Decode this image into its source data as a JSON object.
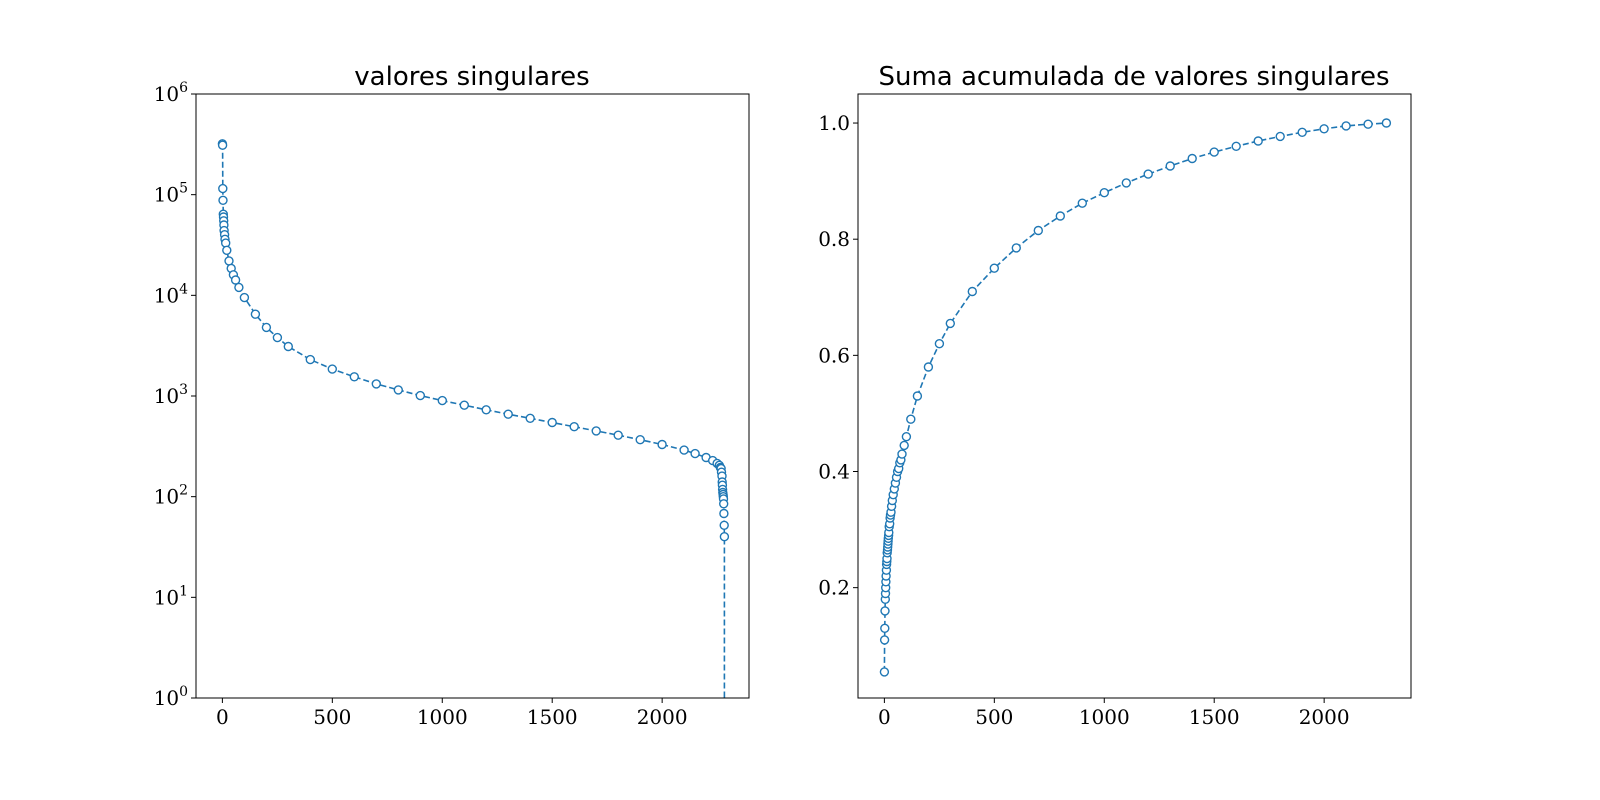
{
  "colors": {
    "series": "#1f77b4",
    "marker_face": "#ffffff",
    "axes": "#000000",
    "background": "#ffffff"
  },
  "chart_data": [
    {
      "type": "line",
      "title": "valores singulares",
      "xlabel": "",
      "ylabel": "",
      "yscale": "log",
      "xlim": [
        -120,
        2395
      ],
      "ylim": [
        1,
        1000000
      ],
      "xticks": [
        0,
        500,
        1000,
        1500,
        2000
      ],
      "xtick_labels": [
        "0",
        "500",
        "1000",
        "1500",
        "2000"
      ],
      "yticks": [
        1,
        10,
        100,
        1000,
        10000,
        100000,
        1000000
      ],
      "ytick_labels": [
        {
          "base": "10",
          "exp": "0"
        },
        {
          "base": "10",
          "exp": "1"
        },
        {
          "base": "10",
          "exp": "2"
        },
        {
          "base": "10",
          "exp": "3"
        },
        {
          "base": "10",
          "exp": "4"
        },
        {
          "base": "10",
          "exp": "5"
        },
        {
          "base": "10",
          "exp": "6"
        }
      ],
      "grid": false,
      "line_style": "dashed",
      "marker": "open-circle",
      "series": [
        {
          "x": [
            0,
            1,
            2,
            3,
            4,
            5,
            6,
            7,
            8,
            10,
            12,
            15,
            20,
            30,
            40,
            50,
            60,
            75,
            100,
            150,
            200,
            250,
            300,
            400,
            500,
            600,
            700,
            800,
            900,
            1000,
            1100,
            1200,
            1300,
            1400,
            1500,
            1600,
            1700,
            1800,
            1900,
            2000,
            2100,
            2150,
            2200,
            2230,
            2250,
            2260,
            2265,
            2268,
            2270,
            2272,
            2273,
            2274,
            2275,
            2276,
            2277,
            2278,
            2279,
            2280,
            2281,
            2282,
            2283
          ],
          "y": [
            320000,
            310000,
            115000,
            88000,
            64000,
            60000,
            55000,
            50000,
            44000,
            40000,
            36000,
            33000,
            28000,
            22000,
            18500,
            16000,
            14200,
            12000,
            9500,
            6500,
            4800,
            3800,
            3100,
            2300,
            1850,
            1550,
            1320,
            1150,
            1010,
            900,
            810,
            730,
            660,
            600,
            545,
            495,
            450,
            408,
            368,
            330,
            290,
            268,
            245,
            228,
            214,
            205,
            195,
            190,
            175,
            160,
            140,
            130,
            118,
            110,
            105,
            100,
            95,
            85,
            68,
            52,
            40
          ]
        }
      ]
    },
    {
      "type": "line",
      "title": "Suma acumulada de valores singulares",
      "xlabel": "",
      "ylabel": "",
      "yscale": "linear",
      "xlim": [
        -120,
        2395
      ],
      "ylim": [
        0.01,
        1.05
      ],
      "xticks": [
        0,
        500,
        1000,
        1500,
        2000
      ],
      "xtick_labels": [
        "0",
        "500",
        "1000",
        "1500",
        "2000"
      ],
      "yticks": [
        0.2,
        0.4,
        0.6,
        0.8,
        1.0
      ],
      "ytick_labels": [
        "0.2",
        "0.4",
        "0.6",
        "0.8",
        "1.0"
      ],
      "grid": false,
      "line_style": "dashed",
      "marker": "open-circle",
      "series": [
        {
          "x": [
            0,
            1,
            2,
            3,
            4,
            5,
            6,
            7,
            8,
            9,
            10,
            11,
            12,
            13,
            14,
            15,
            16,
            17,
            18,
            19,
            20,
            22,
            24,
            26,
            28,
            30,
            33,
            36,
            40,
            45,
            50,
            55,
            60,
            65,
            70,
            75,
            80,
            90,
            100,
            120,
            150,
            200,
            250,
            300,
            400,
            500,
            600,
            700,
            800,
            900,
            1000,
            1100,
            1200,
            1300,
            1400,
            1500,
            1600,
            1700,
            1800,
            1900,
            2000,
            2100,
            2200,
            2283
          ],
          "y": [
            0.055,
            0.11,
            0.13,
            0.16,
            0.18,
            0.19,
            0.2,
            0.21,
            0.22,
            0.23,
            0.24,
            0.245,
            0.25,
            0.26,
            0.265,
            0.27,
            0.275,
            0.28,
            0.285,
            0.29,
            0.295,
            0.305,
            0.31,
            0.32,
            0.325,
            0.33,
            0.34,
            0.35,
            0.36,
            0.37,
            0.38,
            0.39,
            0.4,
            0.405,
            0.415,
            0.42,
            0.43,
            0.445,
            0.46,
            0.49,
            0.53,
            0.58,
            0.62,
            0.655,
            0.71,
            0.75,
            0.785,
            0.815,
            0.84,
            0.862,
            0.88,
            0.897,
            0.912,
            0.926,
            0.939,
            0.95,
            0.96,
            0.969,
            0.977,
            0.984,
            0.99,
            0.995,
            0.998,
            1.0
          ]
        }
      ]
    }
  ]
}
